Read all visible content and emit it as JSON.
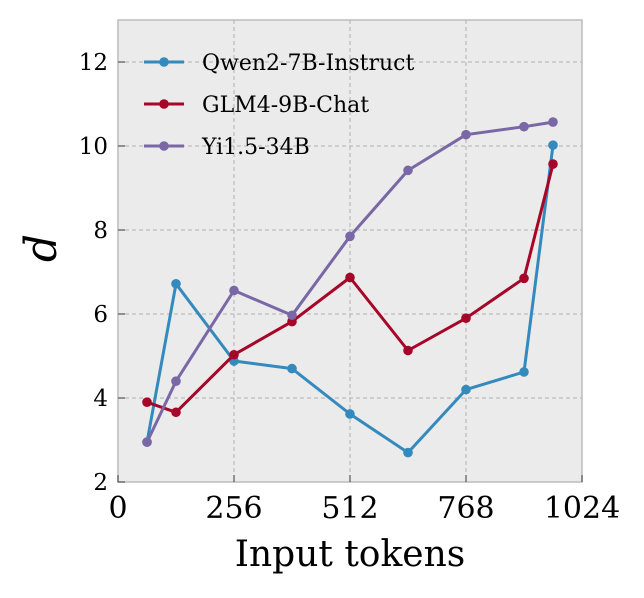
{
  "chart_data": {
    "type": "line",
    "xlabel": "Input tokens",
    "ylabel": "d",
    "xlim": [
      0,
      1024
    ],
    "ylim": [
      2,
      13
    ],
    "x_ticks": [
      0,
      256,
      512,
      768,
      1024
    ],
    "y_ticks": [
      2,
      4,
      6,
      8,
      10,
      12
    ],
    "grid": true,
    "legend_position": "top-left",
    "series": [
      {
        "name": "Qwen2-7B-Instruct",
        "color": "#348ABD",
        "x": [
          64,
          128,
          256,
          384,
          512,
          640,
          768,
          896,
          960
        ],
        "y": [
          2.95,
          6.72,
          4.88,
          4.7,
          3.62,
          2.7,
          4.2,
          4.62,
          10.02
        ]
      },
      {
        "name": "GLM4-9B-Chat",
        "color": "#A60628",
        "x": [
          64,
          128,
          256,
          384,
          512,
          640,
          768,
          896,
          960
        ],
        "y": [
          3.9,
          3.66,
          5.03,
          5.82,
          6.87,
          5.13,
          5.9,
          6.85,
          9.57
        ]
      },
      {
        "name": "Yi1.5-34B",
        "color": "#7A68A6",
        "x": [
          64,
          128,
          256,
          384,
          512,
          640,
          768,
          896,
          960
        ],
        "y": [
          2.95,
          4.4,
          6.56,
          5.97,
          7.85,
          9.42,
          10.27,
          10.46,
          10.57
        ]
      }
    ]
  }
}
